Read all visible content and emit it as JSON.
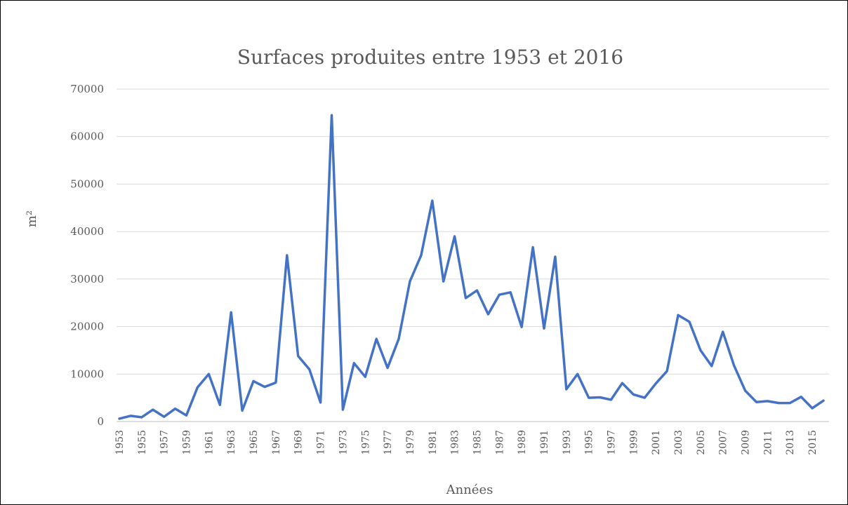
{
  "chart_data": {
    "type": "line",
    "title": "Surfaces produites entre 1953 et 2016",
    "xlabel": "Années",
    "ylabel": "m²",
    "ylim": [
      0,
      70000
    ],
    "yticks": [
      0,
      10000,
      20000,
      30000,
      40000,
      50000,
      60000,
      70000
    ],
    "grid": true,
    "legend": "none",
    "x": [
      1953,
      1954,
      1955,
      1956,
      1957,
      1958,
      1959,
      1960,
      1961,
      1962,
      1963,
      1964,
      1965,
      1966,
      1967,
      1968,
      1969,
      1970,
      1971,
      1972,
      1973,
      1974,
      1975,
      1976,
      1977,
      1978,
      1979,
      1980,
      1981,
      1982,
      1983,
      1984,
      1985,
      1986,
      1987,
      1988,
      1989,
      1990,
      1991,
      1992,
      1993,
      1994,
      1995,
      1996,
      1997,
      1998,
      1999,
      2000,
      2001,
      2002,
      2003,
      2004,
      2005,
      2006,
      2007,
      2008,
      2009,
      2010,
      2011,
      2012,
      2013,
      2014,
      2015,
      2016
    ],
    "xticks": [
      "1953",
      "1955",
      "1957",
      "1959",
      "1961",
      "1963",
      "1965",
      "1967",
      "1969",
      "1971",
      "1973",
      "1975",
      "1977",
      "1979",
      "1981",
      "1983",
      "1985",
      "1987",
      "1989",
      "1991",
      "1993",
      "1995",
      "1997",
      "1999",
      "2001",
      "2003",
      "2005",
      "2007",
      "2009",
      "2011",
      "2013",
      "2015"
    ],
    "series": [
      {
        "color": "#4472c4",
        "values": [
          600,
          1200,
          900,
          2500,
          1000,
          2700,
          1300,
          7200,
          10000,
          3500,
          23000,
          2300,
          8500,
          7300,
          8200,
          35000,
          13800,
          11000,
          4000,
          64500,
          2500,
          12300,
          9400,
          17400,
          11300,
          17400,
          29500,
          35000,
          46500,
          29500,
          39000,
          26000,
          27600,
          22600,
          26700,
          27200,
          19900,
          36700,
          19600,
          34700,
          6800,
          10000,
          5000,
          5100,
          4600,
          8100,
          5700,
          5000,
          8000,
          10600,
          22400,
          21000,
          15000,
          11700,
          18900,
          11800,
          6500,
          4100,
          4300,
          3900,
          3900,
          5200,
          2800,
          4400
        ]
      }
    ]
  }
}
